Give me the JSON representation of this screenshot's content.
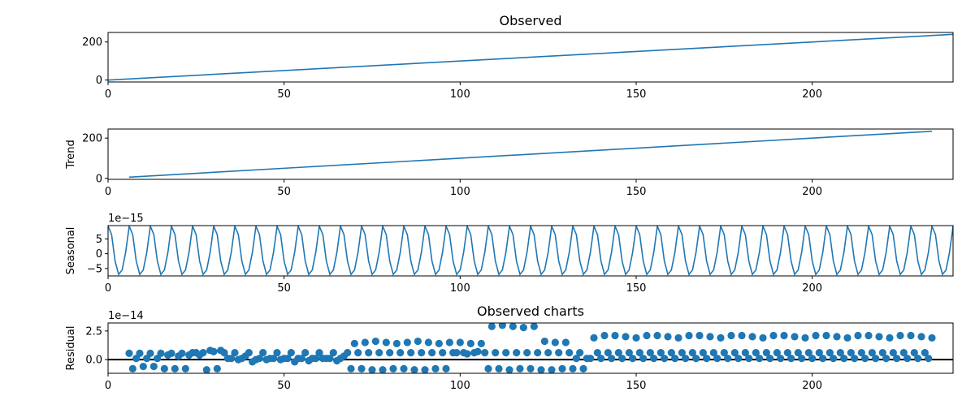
{
  "chart_data": [
    {
      "type": "line",
      "title": "Observed",
      "ylabel": "",
      "xlim": [
        0,
        240
      ],
      "ylim": [
        -10,
        250
      ],
      "xticks": [
        0,
        50,
        100,
        150,
        200
      ],
      "yticks": [
        0,
        200
      ],
      "offset_label": "",
      "series": [
        {
          "x": [
            0,
            240
          ],
          "y": [
            0,
            240
          ]
        }
      ]
    },
    {
      "type": "line",
      "title": "",
      "ylabel": "Trend",
      "xlim": [
        0,
        240
      ],
      "ylim": [
        -5,
        245
      ],
      "xticks": [
        0,
        50,
        100,
        150,
        200
      ],
      "yticks": [
        0,
        200
      ],
      "offset_label": "",
      "series": [
        {
          "x": [
            6,
            234
          ],
          "y": [
            6,
            234
          ]
        }
      ]
    },
    {
      "type": "line",
      "title": "",
      "ylabel": "Seasonal",
      "xlim": [
        0,
        240
      ],
      "ylim": [
        -7.5,
        9.5
      ],
      "xticks": [
        0,
        50,
        100,
        150,
        200
      ],
      "yticks": [
        -5,
        0,
        5
      ],
      "ytick_labels": [
        "−5",
        "0",
        "5"
      ],
      "offset_label": "1e−15",
      "period": 6,
      "pattern": [
        9.3,
        6.5,
        -2.5,
        -7.0,
        -5.5,
        0.5
      ]
    },
    {
      "type": "scatter",
      "title": "Observed charts",
      "ylabel": "Residual",
      "xlim": [
        0,
        240
      ],
      "ylim": [
        -1.2,
        3.2
      ],
      "xticks": [
        0,
        50,
        100,
        150,
        200
      ],
      "yticks": [
        0,
        2.5
      ],
      "ytick_labels": [
        "0.0",
        "2.5"
      ],
      "offset_label": "1e−14",
      "zero_line": true,
      "points": [
        [
          6,
          0.55
        ],
        [
          7,
          -0.8
        ],
        [
          8,
          0.1
        ],
        [
          9,
          0.55
        ],
        [
          10,
          -0.6
        ],
        [
          11,
          0.1
        ],
        [
          12,
          0.55
        ],
        [
          13,
          -0.6
        ],
        [
          14,
          0.1
        ],
        [
          15,
          0.55
        ],
        [
          16,
          -0.8
        ],
        [
          17,
          0.4
        ],
        [
          18,
          0.55
        ],
        [
          19,
          -0.8
        ],
        [
          20,
          0.3
        ],
        [
          21,
          0.55
        ],
        [
          22,
          -0.8
        ],
        [
          23,
          0.4
        ],
        [
          24,
          0.6
        ],
        [
          25,
          0.6
        ],
        [
          26,
          0.4
        ],
        [
          27,
          0.6
        ],
        [
          28,
          -0.9
        ],
        [
          29,
          0.8
        ],
        [
          30,
          0.7
        ],
        [
          31,
          -0.8
        ],
        [
          32,
          0.8
        ],
        [
          33,
          0.6
        ],
        [
          34,
          0.1
        ],
        [
          35,
          0.1
        ],
        [
          36,
          0.6
        ],
        [
          37,
          0.0
        ],
        [
          38,
          0.1
        ],
        [
          39,
          0.3
        ],
        [
          40,
          0.6
        ],
        [
          41,
          -0.2
        ],
        [
          42,
          0.0
        ],
        [
          43,
          0.1
        ],
        [
          44,
          0.6
        ],
        [
          45,
          0.0
        ],
        [
          46,
          0.1
        ],
        [
          47,
          0.1
        ],
        [
          48,
          0.6
        ],
        [
          49,
          0.0
        ],
        [
          50,
          0.1
        ],
        [
          51,
          0.1
        ],
        [
          52,
          0.6
        ],
        [
          53,
          -0.2
        ],
        [
          54,
          0.1
        ],
        [
          55,
          0.1
        ],
        [
          56,
          0.6
        ],
        [
          57,
          -0.1
        ],
        [
          58,
          0.1
        ],
        [
          59,
          0.1
        ],
        [
          60,
          0.6
        ],
        [
          61,
          0.1
        ],
        [
          62,
          0.1
        ],
        [
          63,
          0.1
        ],
        [
          64,
          0.6
        ],
        [
          65,
          -0.1
        ],
        [
          66,
          0.1
        ],
        [
          67,
          0.3
        ],
        [
          68,
          0.6
        ],
        [
          69,
          -0.8
        ],
        [
          70,
          1.4
        ],
        [
          71,
          0.6
        ],
        [
          72,
          -0.8
        ],
        [
          73,
          1.5
        ],
        [
          74,
          0.6
        ],
        [
          75,
          -0.9
        ],
        [
          76,
          1.6
        ],
        [
          77,
          0.6
        ],
        [
          78,
          -0.9
        ],
        [
          79,
          1.5
        ],
        [
          80,
          0.6
        ],
        [
          81,
          -0.8
        ],
        [
          82,
          1.4
        ],
        [
          83,
          0.6
        ],
        [
          84,
          -0.8
        ],
        [
          85,
          1.5
        ],
        [
          86,
          0.6
        ],
        [
          87,
          -0.9
        ],
        [
          88,
          1.6
        ],
        [
          89,
          0.6
        ],
        [
          90,
          -0.9
        ],
        [
          91,
          1.5
        ],
        [
          92,
          0.6
        ],
        [
          93,
          -0.8
        ],
        [
          94,
          1.4
        ],
        [
          95,
          0.6
        ],
        [
          96,
          -0.8
        ],
        [
          97,
          1.5
        ],
        [
          98,
          0.6
        ],
        [
          99,
          0.6
        ],
        [
          100,
          1.5
        ],
        [
          101,
          0.6
        ],
        [
          102,
          0.5
        ],
        [
          103,
          1.4
        ],
        [
          104,
          0.6
        ],
        [
          105,
          0.7
        ],
        [
          106,
          1.4
        ],
        [
          107,
          0.6
        ],
        [
          108,
          -0.8
        ],
        [
          109,
          2.9
        ],
        [
          110,
          0.6
        ],
        [
          111,
          -0.8
        ],
        [
          112,
          3.0
        ],
        [
          113,
          0.6
        ],
        [
          114,
          -0.9
        ],
        [
          115,
          2.9
        ],
        [
          116,
          0.6
        ],
        [
          117,
          -0.8
        ],
        [
          118,
          2.8
        ],
        [
          119,
          0.6
        ],
        [
          120,
          -0.8
        ],
        [
          121,
          2.9
        ],
        [
          122,
          0.6
        ],
        [
          123,
          -0.9
        ],
        [
          124,
          1.6
        ],
        [
          125,
          0.6
        ],
        [
          126,
          -0.9
        ],
        [
          127,
          1.5
        ],
        [
          128,
          0.6
        ],
        [
          129,
          -0.8
        ],
        [
          130,
          1.5
        ],
        [
          131,
          0.6
        ],
        [
          132,
          -0.8
        ],
        [
          133,
          0.1
        ],
        [
          134,
          0.6
        ],
        [
          135,
          -0.8
        ],
        [
          136,
          0.1
        ],
        [
          137,
          0.1
        ],
        [
          138,
          1.9
        ],
        [
          139,
          0.6
        ],
        [
          140,
          0.1
        ],
        [
          141,
          2.1
        ],
        [
          142,
          0.6
        ],
        [
          143,
          0.1
        ],
        [
          144,
          2.1
        ],
        [
          145,
          0.6
        ],
        [
          146,
          0.1
        ],
        [
          147,
          2.0
        ],
        [
          148,
          0.6
        ],
        [
          149,
          0.1
        ],
        [
          150,
          1.9
        ],
        [
          151,
          0.6
        ],
        [
          152,
          0.1
        ],
        [
          153,
          2.1
        ],
        [
          154,
          0.6
        ],
        [
          155,
          0.1
        ],
        [
          156,
          2.1
        ],
        [
          157,
          0.6
        ],
        [
          158,
          0.1
        ],
        [
          159,
          2.0
        ],
        [
          160,
          0.6
        ],
        [
          161,
          0.1
        ],
        [
          162,
          1.9
        ],
        [
          163,
          0.6
        ],
        [
          164,
          0.1
        ],
        [
          165,
          2.1
        ],
        [
          166,
          0.6
        ],
        [
          167,
          0.1
        ],
        [
          168,
          2.1
        ],
        [
          169,
          0.6
        ],
        [
          170,
          0.1
        ],
        [
          171,
          2.0
        ],
        [
          172,
          0.6
        ],
        [
          173,
          0.1
        ],
        [
          174,
          1.9
        ],
        [
          175,
          0.6
        ],
        [
          176,
          0.1
        ],
        [
          177,
          2.1
        ],
        [
          178,
          0.6
        ],
        [
          179,
          0.1
        ],
        [
          180,
          2.1
        ],
        [
          181,
          0.6
        ],
        [
          182,
          0.1
        ],
        [
          183,
          2.0
        ],
        [
          184,
          0.6
        ],
        [
          185,
          0.1
        ],
        [
          186,
          1.9
        ],
        [
          187,
          0.6
        ],
        [
          188,
          0.1
        ],
        [
          189,
          2.1
        ],
        [
          190,
          0.6
        ],
        [
          191,
          0.1
        ],
        [
          192,
          2.1
        ],
        [
          193,
          0.6
        ],
        [
          194,
          0.1
        ],
        [
          195,
          2.0
        ],
        [
          196,
          0.6
        ],
        [
          197,
          0.1
        ],
        [
          198,
          1.9
        ],
        [
          199,
          0.6
        ],
        [
          200,
          0.1
        ],
        [
          201,
          2.1
        ],
        [
          202,
          0.6
        ],
        [
          203,
          0.1
        ],
        [
          204,
          2.1
        ],
        [
          205,
          0.6
        ],
        [
          206,
          0.1
        ],
        [
          207,
          2.0
        ],
        [
          208,
          0.6
        ],
        [
          209,
          0.1
        ],
        [
          210,
          1.9
        ],
        [
          211,
          0.6
        ],
        [
          212,
          0.1
        ],
        [
          213,
          2.1
        ],
        [
          214,
          0.6
        ],
        [
          215,
          0.1
        ],
        [
          216,
          2.1
        ],
        [
          217,
          0.6
        ],
        [
          218,
          0.1
        ],
        [
          219,
          2.0
        ],
        [
          220,
          0.6
        ],
        [
          221,
          0.1
        ],
        [
          222,
          1.9
        ],
        [
          223,
          0.6
        ],
        [
          224,
          0.1
        ],
        [
          225,
          2.1
        ],
        [
          226,
          0.6
        ],
        [
          227,
          0.1
        ],
        [
          228,
          2.1
        ],
        [
          229,
          0.6
        ],
        [
          230,
          0.1
        ],
        [
          231,
          2.0
        ],
        [
          232,
          0.6
        ],
        [
          233,
          0.1
        ],
        [
          234,
          1.9
        ]
      ]
    }
  ],
  "colors": {
    "series": "#1f77b4",
    "axis": "#000000",
    "zero_line": "#000000"
  }
}
